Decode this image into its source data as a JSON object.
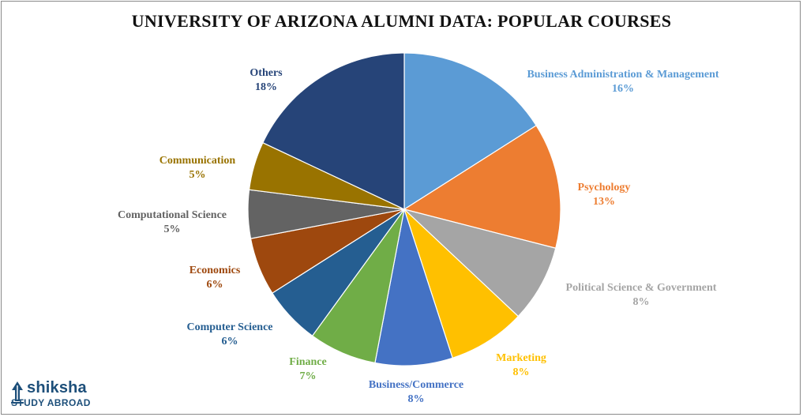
{
  "page": {
    "title": "UNIVERSITY  OF ARIZONA ALUMNI DATA:  POPULAR COURSES"
  },
  "logo": {
    "name": "shiksha",
    "subtitle": "STUDY ABROAD",
    "icon": "pen-nib-icon",
    "color": "#1d4f7a"
  },
  "chart_data": {
    "type": "pie",
    "title": "UNIVERSITY  OF ARIZONA ALUMNI DATA:  POPULAR COURSES",
    "start_angle_deg": 0,
    "direction": "clockwise",
    "slices": [
      {
        "label": "Business Administration  & Management",
        "value": 16,
        "value_label": "16%",
        "color": "#5b9bd5"
      },
      {
        "label": "Psychology",
        "value": 13,
        "value_label": "13%",
        "color": "#ed7d31"
      },
      {
        "label": "Political  Science & Government",
        "value": 8,
        "value_label": "8%",
        "color": "#a5a5a5"
      },
      {
        "label": "Marketing",
        "value": 8,
        "value_label": "8%",
        "color": "#ffc000"
      },
      {
        "label": "Business/Commerce",
        "value": 8,
        "value_label": "8%",
        "color": "#4472c4"
      },
      {
        "label": "Finance",
        "value": 7,
        "value_label": "7%",
        "color": "#70ad47"
      },
      {
        "label": "Computer  Science",
        "value": 6,
        "value_label": "6%",
        "color": "#255e91"
      },
      {
        "label": "Economics",
        "value": 6,
        "value_label": "6%",
        "color": "#9e480e"
      },
      {
        "label": "Computational  Science",
        "value": 5,
        "value_label": "5%",
        "color": "#636363"
      },
      {
        "label": "Communication",
        "value": 5,
        "value_label": "5%",
        "color": "#997300"
      },
      {
        "label": "Others",
        "value": 18,
        "value_label": "18%",
        "color": "#264478"
      }
    ],
    "label_colors": [
      "#5b9bd5",
      "#ed7d31",
      "#a5a5a5",
      "#ffc000",
      "#4472c4",
      "#70ad47",
      "#255e91",
      "#9e480e",
      "#636363",
      "#997300",
      "#264478"
    ]
  }
}
